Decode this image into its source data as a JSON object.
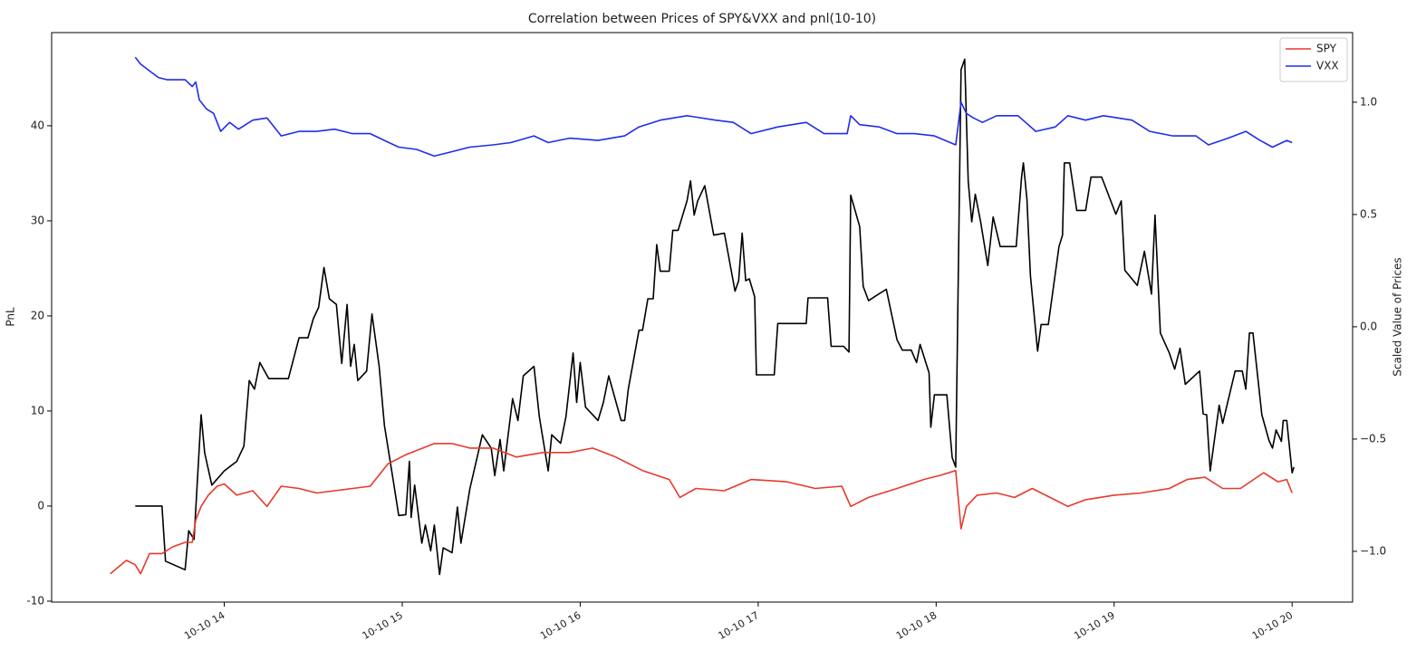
{
  "chart_data": {
    "type": "line",
    "title": "Correlation between Prices of SPY&VXX and pnl(10-10)",
    "ylabel": "PnL",
    "y2label": "Scaled Value of Prices",
    "xlim": [
      13.03,
      20.34
    ],
    "ylim": [
      -10.1,
      49.8
    ],
    "y2lim": [
      -1.226,
      1.31
    ],
    "xticks": [
      {
        "value": 14,
        "label": "10-10 14"
      },
      {
        "value": 15,
        "label": "10-10 15"
      },
      {
        "value": 16,
        "label": "10-10 16"
      },
      {
        "value": 17,
        "label": "10-10 17"
      },
      {
        "value": 18,
        "label": "10-10 18"
      },
      {
        "value": 19,
        "label": "10-10 19"
      },
      {
        "value": 20,
        "label": "10-10 20"
      }
    ],
    "yticks": [
      -10,
      0,
      10,
      20,
      30,
      40
    ],
    "y2ticks": [
      {
        "value": -1.0,
        "label": "−1.0"
      },
      {
        "value": -0.5,
        "label": "−0.5"
      },
      {
        "value": 0.0,
        "label": "0.0"
      },
      0.5,
      {
        "value": 1.0,
        "label": "1.0"
      }
    ],
    "legend": "upper right",
    "series": [
      {
        "color": "#000000",
        "axis": "y",
        "x": [
          13.5,
          13.65,
          13.67,
          13.78,
          13.8,
          13.83,
          13.87,
          13.89,
          13.93,
          14.0,
          14.07,
          14.11,
          14.14,
          14.17,
          14.2,
          14.25,
          14.36,
          14.42,
          14.47,
          14.5,
          14.53,
          14.56,
          14.59,
          14.63,
          14.66,
          14.69,
          14.71,
          14.73,
          14.75,
          14.8,
          14.83,
          14.87,
          14.9,
          14.95,
          14.98,
          15.02,
          15.04,
          15.05,
          15.07,
          15.11,
          15.13,
          15.16,
          15.18,
          15.21,
          15.23,
          15.28,
          15.31,
          15.33,
          15.38,
          15.45,
          15.5,
          15.52,
          15.55,
          15.57,
          15.62,
          15.65,
          15.68,
          15.74,
          15.77,
          15.82,
          15.84,
          15.89,
          15.92,
          15.96,
          15.98,
          16.0,
          16.03,
          16.1,
          16.13,
          16.16,
          16.23,
          16.25,
          16.27,
          16.33,
          16.35,
          16.38,
          16.41,
          16.43,
          16.45,
          16.5,
          16.52,
          16.55,
          16.6,
          16.62,
          16.64,
          16.66,
          16.7,
          16.75,
          16.81,
          16.87,
          16.89,
          16.91,
          16.93,
          16.95,
          16.98,
          16.99,
          17.09,
          17.11,
          17.27,
          17.28,
          17.39,
          17.41,
          17.48,
          17.51,
          17.52,
          17.57,
          17.59,
          17.62,
          17.66,
          17.72,
          17.78,
          17.81,
          17.86,
          17.89,
          17.91,
          17.96,
          17.97,
          17.99,
          18.06,
          18.09,
          18.11,
          18.14,
          18.16,
          18.18,
          18.2,
          18.22,
          18.25,
          18.29,
          18.32,
          18.36,
          18.45,
          18.48,
          18.49,
          18.51,
          18.53,
          18.57,
          18.59,
          18.63,
          18.69,
          18.71,
          18.72,
          18.75,
          18.79,
          18.84,
          18.87,
          18.93,
          19.01,
          19.04,
          19.06,
          19.13,
          19.17,
          19.21,
          19.23,
          19.26,
          19.31,
          19.34,
          19.37,
          19.4,
          19.48,
          19.5,
          19.52,
          19.54,
          19.59,
          19.61,
          19.68,
          19.72,
          19.74,
          19.76,
          19.78,
          19.83,
          19.87,
          19.89,
          19.91,
          19.94,
          19.95,
          19.97,
          20.0,
          20.01
        ],
        "values": [
          0,
          0,
          -5.8,
          -6.7,
          -2.6,
          -3.5,
          9.6,
          5.6,
          2.2,
          3.7,
          4.7,
          6.3,
          13.2,
          12.3,
          15.1,
          13.4,
          13.4,
          17.7,
          17.7,
          19.7,
          20.9,
          25.1,
          21.8,
          21.2,
          15.0,
          21.2,
          14.7,
          17.0,
          13.2,
          14.2,
          20.2,
          14.7,
          8.5,
          2.6,
          -1.0,
          -0.9,
          4.7,
          -1.2,
          2.2,
          -3.9,
          -2.0,
          -4.7,
          -2.0,
          -7.2,
          -4.4,
          -4.9,
          -0.1,
          -3.9,
          1.8,
          7.5,
          6.1,
          3.2,
          7.0,
          3.7,
          11.3,
          9.0,
          13.7,
          14.7,
          9.4,
          3.7,
          7.5,
          6.6,
          9.4,
          16.1,
          10.9,
          15.1,
          10.4,
          9.0,
          10.9,
          13.7,
          9.0,
          9.0,
          12.3,
          18.5,
          18.5,
          21.8,
          21.8,
          27.5,
          24.7,
          24.7,
          29.0,
          29.0,
          32.1,
          34.2,
          30.6,
          32.1,
          33.7,
          28.5,
          28.7,
          22.6,
          23.7,
          28.7,
          23.7,
          23.9,
          22.0,
          13.8,
          13.8,
          19.2,
          19.2,
          21.9,
          21.9,
          16.8,
          16.8,
          16.2,
          32.7,
          29.4,
          23.1,
          21.6,
          22.1,
          22.8,
          17.5,
          16.4,
          16.4,
          15.1,
          17.0,
          14.0,
          8.3,
          11.7,
          11.7,
          5.1,
          4.1,
          45.9,
          47.0,
          34.2,
          29.9,
          32.8,
          29.9,
          25.3,
          30.4,
          27.3,
          27.3,
          34.6,
          36.1,
          32.3,
          24.2,
          16.3,
          19.1,
          19.1,
          27.3,
          28.5,
          36.1,
          36.1,
          31.1,
          31.1,
          34.6,
          34.6,
          30.7,
          32.1,
          24.8,
          23.2,
          26.8,
          22.3,
          30.6,
          18.2,
          16.1,
          14.4,
          16.6,
          12.8,
          14.2,
          9.7,
          9.6,
          3.7,
          10.6,
          8.7,
          14.2,
          14.2,
          12.3,
          18.2,
          18.2,
          9.6,
          6.9,
          6.1,
          8.0,
          6.8,
          9.0,
          9.0,
          3.5,
          4.1
        ]
      },
      {
        "name": "SPY",
        "color": "#e8392a",
        "axis": "y2",
        "x": [
          13.36,
          13.45,
          13.5,
          13.53,
          13.58,
          13.65,
          13.71,
          13.78,
          13.82,
          13.84,
          13.87,
          13.91,
          13.96,
          14.0,
          14.07,
          14.16,
          14.24,
          14.32,
          14.42,
          14.52,
          14.62,
          14.72,
          14.82,
          14.92,
          15.02,
          15.18,
          15.28,
          15.38,
          15.51,
          15.64,
          15.79,
          15.94,
          16.07,
          16.2,
          16.35,
          16.5,
          16.56,
          16.65,
          16.81,
          16.96,
          17.16,
          17.32,
          17.47,
          17.52,
          17.62,
          17.78,
          17.93,
          18.03,
          18.11,
          18.14,
          18.17,
          18.23,
          18.34,
          18.44,
          18.54,
          18.64,
          18.74,
          18.84,
          19.0,
          19.15,
          19.31,
          19.41,
          19.51,
          19.61,
          19.71,
          19.84,
          19.92,
          19.97,
          20.0
        ],
        "values": [
          -1.1,
          -1.04,
          -1.06,
          -1.1,
          -1.01,
          -1.01,
          -0.98,
          -0.96,
          -0.96,
          -0.86,
          -0.8,
          -0.75,
          -0.71,
          -0.7,
          -0.75,
          -0.73,
          -0.8,
          -0.71,
          -0.72,
          -0.74,
          -0.73,
          -0.72,
          -0.71,
          -0.61,
          -0.57,
          -0.52,
          -0.52,
          -0.54,
          -0.54,
          -0.58,
          -0.56,
          -0.56,
          -0.54,
          -0.58,
          -0.64,
          -0.68,
          -0.76,
          -0.72,
          -0.73,
          -0.68,
          -0.69,
          -0.72,
          -0.71,
          -0.8,
          -0.76,
          -0.72,
          -0.68,
          -0.66,
          -0.64,
          -0.9,
          -0.8,
          -0.75,
          -0.74,
          -0.76,
          -0.72,
          -0.76,
          -0.8,
          -0.77,
          -0.75,
          -0.74,
          -0.72,
          -0.68,
          -0.67,
          -0.72,
          -0.72,
          -0.65,
          -0.69,
          -0.68,
          -0.74
        ]
      },
      {
        "name": "VXX",
        "color": "#1f2ee8",
        "axis": "y2",
        "x": [
          13.5,
          13.53,
          13.58,
          13.63,
          13.68,
          13.78,
          13.82,
          13.84,
          13.86,
          13.9,
          13.94,
          13.98,
          14.03,
          14.08,
          14.16,
          14.24,
          14.32,
          14.42,
          14.52,
          14.62,
          14.72,
          14.82,
          14.9,
          14.98,
          15.08,
          15.18,
          15.28,
          15.38,
          15.51,
          15.61,
          15.74,
          15.82,
          15.94,
          16.1,
          16.25,
          16.33,
          16.45,
          16.6,
          16.76,
          16.86,
          16.96,
          17.11,
          17.27,
          17.37,
          17.5,
          17.52,
          17.57,
          17.68,
          17.78,
          17.88,
          17.99,
          18.11,
          18.14,
          18.17,
          18.21,
          18.26,
          18.34,
          18.46,
          18.56,
          18.67,
          18.74,
          18.84,
          18.94,
          19.1,
          19.2,
          19.33,
          19.46,
          19.53,
          19.64,
          19.74,
          19.82,
          19.89,
          19.97,
          20.0
        ],
        "values": [
          1.2,
          1.17,
          1.14,
          1.11,
          1.1,
          1.1,
          1.07,
          1.09,
          1.01,
          0.97,
          0.95,
          0.87,
          0.91,
          0.88,
          0.92,
          0.93,
          0.85,
          0.87,
          0.87,
          0.88,
          0.86,
          0.86,
          0.83,
          0.8,
          0.79,
          0.76,
          0.78,
          0.8,
          0.81,
          0.82,
          0.85,
          0.82,
          0.84,
          0.83,
          0.85,
          0.89,
          0.92,
          0.94,
          0.92,
          0.91,
          0.86,
          0.89,
          0.91,
          0.86,
          0.86,
          0.94,
          0.9,
          0.89,
          0.86,
          0.86,
          0.85,
          0.81,
          1.0,
          0.95,
          0.93,
          0.91,
          0.94,
          0.94,
          0.87,
          0.89,
          0.94,
          0.92,
          0.94,
          0.92,
          0.87,
          0.85,
          0.85,
          0.81,
          0.84,
          0.87,
          0.83,
          0.8,
          0.83,
          0.82
        ]
      }
    ]
  }
}
